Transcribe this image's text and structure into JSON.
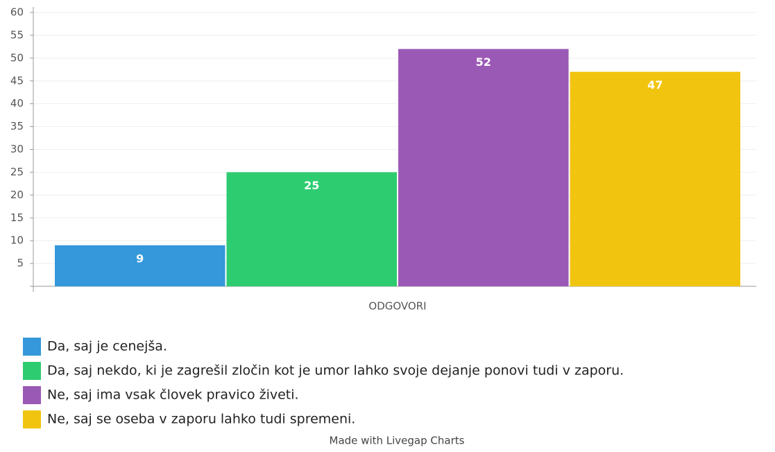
{
  "chart_data": {
    "type": "bar",
    "categories": [
      "ODGOVORI"
    ],
    "series": [
      {
        "name": "Da, saj je cenejša.",
        "color": "#3498db",
        "values": [
          9
        ]
      },
      {
        "name": "Da, saj nekdo, ki je zagrešil zločin kot je umor lahko svoje dejanje ponovi tudi v zaporu.",
        "color": "#2ecc71",
        "values": [
          25
        ]
      },
      {
        "name": "Ne, saj ima vsak človek pravico živeti.",
        "color": "#9b59b6",
        "values": [
          52
        ]
      },
      {
        "name": "Ne, saj se oseba v zaporu lahko tudi spremeni.",
        "color": "#f1c40f",
        "values": [
          47
        ]
      }
    ],
    "ylim": [
      0,
      60
    ],
    "yticks": [
      5,
      10,
      15,
      20,
      25,
      30,
      35,
      40,
      45,
      50,
      55,
      60
    ],
    "grid": true,
    "legend": "bottom",
    "credit": "Made with Livegap Charts"
  }
}
